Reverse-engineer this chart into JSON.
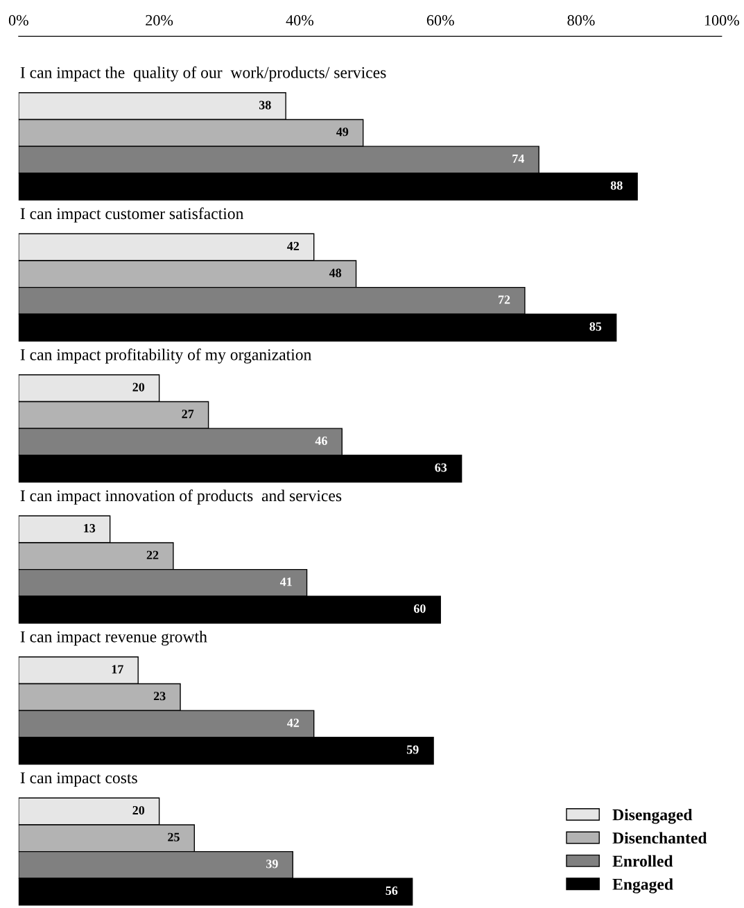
{
  "chart_data": {
    "type": "bar",
    "orientation": "horizontal",
    "categories": [
      "I can impact the  quality of our  work/products/ services",
      "I can impact customer satisfaction",
      "I can impact profitability of my organization",
      "I can impact innovation of products  and services",
      "I can impact revenue growth",
      "I can impact costs"
    ],
    "series": [
      {
        "name": "Disengaged",
        "color": "#e6e6e6",
        "values": [
          38,
          42,
          20,
          13,
          17,
          20
        ]
      },
      {
        "name": "Disenchanted",
        "color": "#b3b3b3",
        "values": [
          49,
          48,
          27,
          22,
          23,
          25
        ]
      },
      {
        "name": "Enrolled",
        "color": "#808080",
        "values": [
          74,
          72,
          46,
          41,
          42,
          39
        ]
      },
      {
        "name": "Engaged",
        "color": "#000000",
        "values": [
          88,
          85,
          63,
          60,
          59,
          56
        ]
      }
    ],
    "xlim": [
      0,
      100
    ],
    "xticks": [
      {
        "value": 0,
        "label": "0%"
      },
      {
        "value": 20,
        "label": "20%"
      },
      {
        "value": 40,
        "label": "40%"
      },
      {
        "value": 60,
        "label": "60%"
      },
      {
        "value": 80,
        "label": "80%"
      },
      {
        "value": 100,
        "label": "100%"
      }
    ],
    "data_labels": true,
    "grid": false,
    "legend": "bottom right"
  }
}
